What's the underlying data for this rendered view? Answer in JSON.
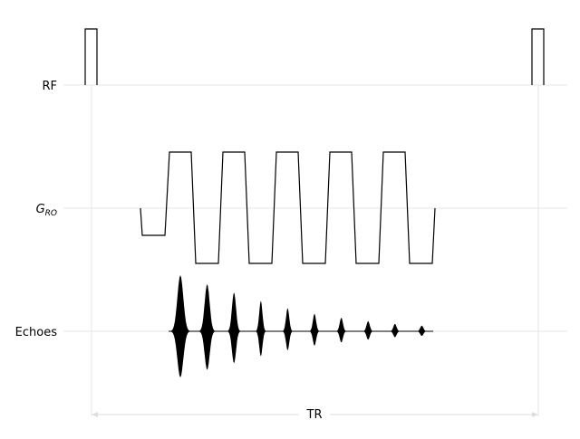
{
  "diagram": {
    "rows": [
      {
        "id": "rf",
        "label": "RF"
      },
      {
        "id": "gro",
        "label_main": "G",
        "label_sub": "RO"
      },
      {
        "id": "echoes",
        "label": "Echoes"
      }
    ],
    "tr_label": "TR",
    "rf_pulses": 2,
    "gradient_lobes": 5,
    "echo_count": 10,
    "echo_amplitudes": [
      1.0,
      0.84,
      0.69,
      0.54,
      0.41,
      0.31,
      0.24,
      0.18,
      0.13,
      0.1
    ],
    "colors": {
      "trace": "#000000",
      "guide": "#e6e6e6",
      "arrow": "#dddddd"
    }
  }
}
